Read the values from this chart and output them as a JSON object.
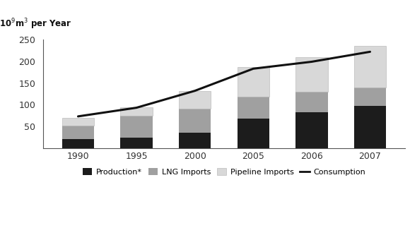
{
  "years": [
    "1990",
    "1995",
    "2000",
    "2005",
    "2006",
    "2007"
  ],
  "year_vals": [
    1990,
    1995,
    2000,
    2005,
    2006,
    2007
  ],
  "production": [
    20,
    24,
    35,
    68,
    82,
    97
  ],
  "lng_imports": [
    32,
    50,
    55,
    50,
    48,
    42
  ],
  "pipeline_imports": [
    18,
    20,
    42,
    68,
    80,
    96
  ],
  "consumption": [
    73,
    93,
    132,
    183,
    199,
    222
  ],
  "bar_width": 0.55,
  "ylim": [
    0,
    250
  ],
  "yticks": [
    0,
    50,
    100,
    150,
    200,
    250
  ],
  "color_production": "#1c1c1c",
  "color_lng": "#a0a0a0",
  "color_pipeline": "#d8d8d8",
  "color_consumption": "#111111",
  "ylabel": "10$^9$m$^3$ per Year",
  "background_color": "#ffffff",
  "legend_labels": [
    "Production*",
    "LNG Imports",
    "Pipeline Imports",
    "Consumption"
  ]
}
